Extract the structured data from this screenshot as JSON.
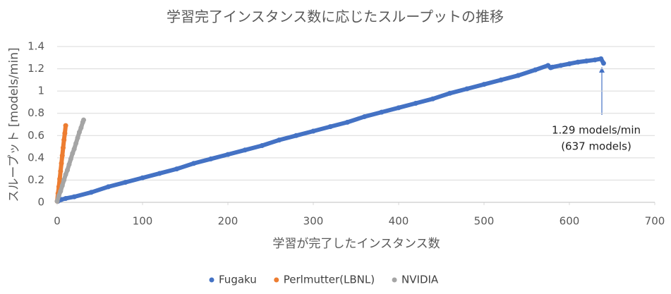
{
  "chart_data": {
    "type": "scatter",
    "title": "学習完了インスタンス数に応じたスループットの推移",
    "x_label": "学習が完了したインスタンス数",
    "y_label": "スループット [models/min]",
    "xlim": [
      0,
      700
    ],
    "xticks": [
      0,
      100,
      200,
      300,
      400,
      500,
      600,
      700
    ],
    "ylim": [
      0,
      1.4
    ],
    "yticks": [
      0,
      0.2,
      0.4,
      0.6,
      0.8,
      1,
      1.2,
      1.4
    ],
    "grid": true,
    "legend": "bottom",
    "annotation": [
      "1.29 models/min",
      "(637 models)"
    ],
    "series": [
      {
        "name": "Fugaku",
        "color": "#4472c4",
        "x": [
          1,
          3,
          5,
          10,
          20,
          40,
          60,
          80,
          100,
          120,
          140,
          160,
          180,
          200,
          220,
          240,
          260,
          280,
          300,
          320,
          340,
          360,
          380,
          400,
          420,
          440,
          460,
          480,
          500,
          520,
          540,
          560,
          575,
          578,
          580,
          590,
          600,
          610,
          620,
          630,
          637,
          640
        ],
        "values": [
          0.01,
          0.02,
          0.025,
          0.035,
          0.05,
          0.09,
          0.14,
          0.18,
          0.22,
          0.26,
          0.3,
          0.35,
          0.39,
          0.43,
          0.47,
          0.51,
          0.56,
          0.6,
          0.64,
          0.68,
          0.72,
          0.77,
          0.81,
          0.85,
          0.89,
          0.93,
          0.98,
          1.02,
          1.06,
          1.1,
          1.14,
          1.19,
          1.23,
          1.21,
          1.215,
          1.23,
          1.245,
          1.26,
          1.27,
          1.28,
          1.29,
          1.25
        ]
      },
      {
        "name": "Perlmutter(LBNL)",
        "color": "#ed7d31",
        "x": [
          0,
          1,
          2,
          3,
          4,
          5,
          6,
          7,
          8,
          9,
          10
        ],
        "values": [
          0.01,
          0.08,
          0.14,
          0.21,
          0.28,
          0.35,
          0.42,
          0.49,
          0.56,
          0.62,
          0.69
        ]
      },
      {
        "name": "NVIDIA",
        "color": "#a5a5a5",
        "x": [
          0,
          2,
          4,
          6,
          8,
          10,
          12,
          14,
          16,
          18,
          20,
          22,
          24,
          26,
          28,
          30,
          31
        ],
        "values": [
          0.01,
          0.06,
          0.1,
          0.15,
          0.2,
          0.25,
          0.29,
          0.34,
          0.39,
          0.44,
          0.48,
          0.53,
          0.58,
          0.63,
          0.67,
          0.72,
          0.74
        ]
      }
    ]
  }
}
